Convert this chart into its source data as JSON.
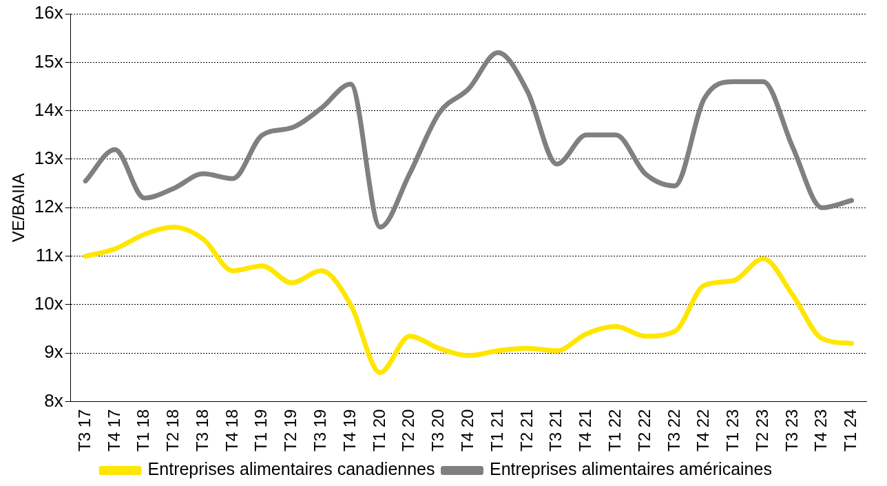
{
  "chart_data": {
    "type": "line",
    "ylabel": "VE/BAIIA",
    "categories": [
      "T3 17",
      "T4 17",
      "T1 18",
      "T2 18",
      "T3 18",
      "T4 18",
      "T1 19",
      "T2 19",
      "T3 19",
      "T4 19",
      "T1 20",
      "T2 20",
      "T3 20",
      "T4 20",
      "T1 21",
      "T2 21",
      "T3 21",
      "T4 21",
      "T1 22",
      "T2 22",
      "T3 22",
      "T4 22",
      "T1 23",
      "T2 23",
      "T3 23",
      "T4 23",
      "T1 24"
    ],
    "series": [
      {
        "name": "Entreprises alimentaires canadiennes",
        "color": "#ffe600",
        "values": [
          11.0,
          11.15,
          11.45,
          11.6,
          11.35,
          10.7,
          10.8,
          10.45,
          10.7,
          10.0,
          8.6,
          9.35,
          9.1,
          8.95,
          9.05,
          9.1,
          9.05,
          9.4,
          9.55,
          9.35,
          9.45,
          10.4,
          10.5,
          10.95,
          10.2,
          9.3,
          9.2
        ]
      },
      {
        "name": "Entreprises alimentaires américaines",
        "color": "#808080",
        "values": [
          12.55,
          13.2,
          12.2,
          12.4,
          12.7,
          12.6,
          13.5,
          13.65,
          14.05,
          14.55,
          11.6,
          12.7,
          13.95,
          14.45,
          15.2,
          14.4,
          12.9,
          13.5,
          13.5,
          12.7,
          12.45,
          14.25,
          14.6,
          14.6,
          13.25,
          12.0,
          12.15
        ]
      }
    ],
    "ylim": [
      8,
      16
    ],
    "yticks": [
      {
        "value": 8,
        "label": "8x"
      },
      {
        "value": 9,
        "label": "9x"
      },
      {
        "value": 10,
        "label": "10x"
      },
      {
        "value": 11,
        "label": "11x"
      },
      {
        "value": 12,
        "label": "12x"
      },
      {
        "value": 13,
        "label": "13x"
      },
      {
        "value": 14,
        "label": "14x"
      },
      {
        "value": 15,
        "label": "15x"
      },
      {
        "value": 16,
        "label": "16x"
      }
    ],
    "grid": "y",
    "legend": "bottom",
    "marker": "none",
    "line_style": "solid"
  }
}
